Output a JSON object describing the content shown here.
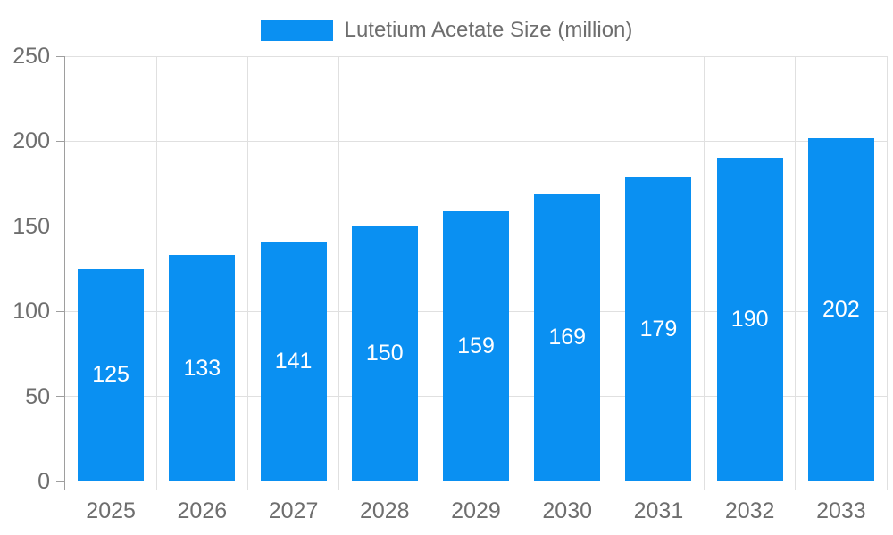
{
  "chart_data": {
    "type": "bar",
    "title": "",
    "series_name": "Lutetium Acetate Size (million)",
    "categories": [
      "2025",
      "2026",
      "2027",
      "2028",
      "2029",
      "2030",
      "2031",
      "2032",
      "2033"
    ],
    "values": [
      125,
      133,
      141,
      150,
      159,
      169,
      179,
      190,
      202
    ],
    "bar_value_labels": [
      "125",
      "133",
      "141",
      "150",
      "159",
      "169",
      "179",
      "190",
      "202"
    ],
    "xlabel": "",
    "ylabel": "",
    "ylim": [
      0,
      250
    ],
    "yticks": [
      0,
      50,
      100,
      150,
      200,
      250
    ],
    "ytick_labels": [
      "0",
      "50",
      "100",
      "150",
      "200",
      "250"
    ],
    "grid": true,
    "legend_position": "top-center",
    "colors": {
      "bar": "#0a90f2",
      "bar_label": "#ffffff",
      "axis_text": "#6e6e6e",
      "grid_line": "#e0e0e0",
      "axis_line": "#9e9e9e",
      "background": "#ffffff"
    }
  }
}
